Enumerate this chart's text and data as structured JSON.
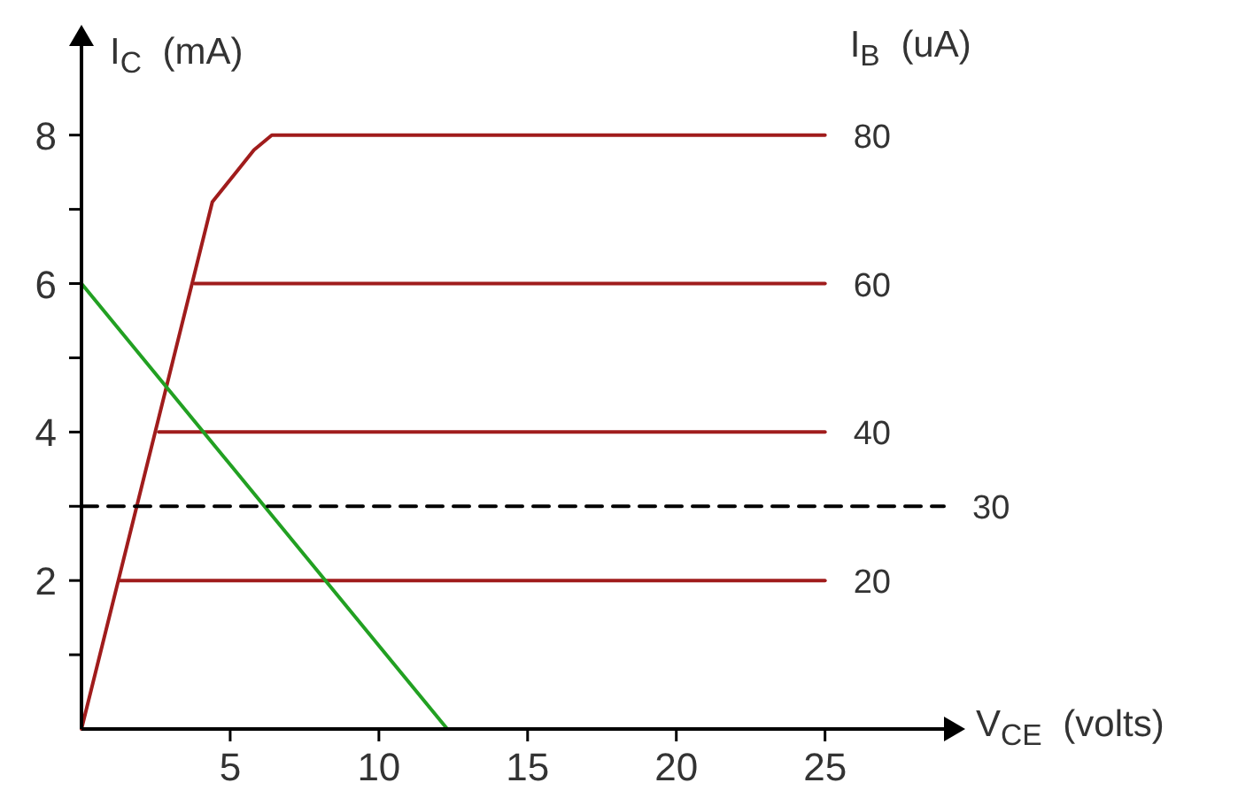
{
  "chart_data": {
    "type": "line",
    "xlabel": "V$_{CE}$ (volts)",
    "ylabel": "I$_{C}$ (mA)",
    "legend_title": "I$_{B}$ (uA)",
    "xlim": [
      0,
      29
    ],
    "xticks": [
      5,
      10,
      15,
      20,
      25
    ],
    "ylim": [
      0,
      9.2
    ],
    "yticks": [
      {
        "value": 1,
        "label": null
      },
      2,
      {
        "value": 3,
        "label": null
      },
      4,
      {
        "value": 5,
        "label": null
      },
      6,
      {
        "value": 7,
        "label": null
      },
      8
    ],
    "series": [
      {
        "name": "80",
        "color": "#a01c1c",
        "x": [
          0,
          4.4,
          5.2,
          5.8,
          6.4,
          25
        ],
        "values": [
          0,
          7.1,
          7.5,
          7.8,
          8,
          8
        ]
      },
      {
        "name": "60",
        "color": "#a01c1c",
        "x": [
          3.8,
          25
        ],
        "values": [
          6,
          6
        ]
      },
      {
        "name": "40",
        "color": "#a01c1c",
        "x": [
          2.6,
          25
        ],
        "values": [
          4,
          4
        ]
      },
      {
        "name": "20",
        "color": "#a01c1c",
        "x": [
          1.3,
          25
        ],
        "values": [
          2,
          2
        ]
      },
      {
        "color": "#22a022",
        "x": [
          0,
          12.3
        ],
        "values": [
          6,
          0
        ]
      },
      {
        "name": "30",
        "color": "#000000",
        "line_style": "dashed",
        "x": [
          0,
          29
        ],
        "values": [
          3,
          3
        ]
      }
    ],
    "grid": false,
    "marker": "none",
    "line_style": "solid"
  }
}
